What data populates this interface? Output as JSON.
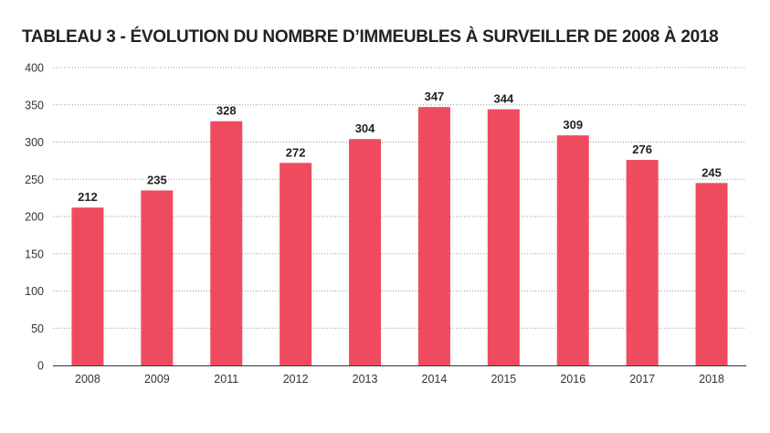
{
  "chart_data": {
    "type": "bar",
    "title": "TABLEAU 3 - ÉVOLUTION DU NOMBRE D’IMMEUBLES À SURVEILLER DE 2008 À 2018",
    "xlabel": "",
    "ylabel": "",
    "categories": [
      "2008",
      "2009",
      "2011",
      "2012",
      "2013",
      "2014",
      "2015",
      "2016",
      "2017",
      "2018"
    ],
    "values": [
      212,
      235,
      328,
      272,
      304,
      347,
      344,
      309,
      276,
      245
    ],
    "data_labels": [
      "212",
      "235",
      "328",
      "272",
      "304",
      "347",
      "344",
      "309",
      "276",
      "245"
    ],
    "ylim": [
      0,
      400
    ],
    "yticks": [
      "0",
      "50",
      "100",
      "150",
      "200",
      "250",
      "300",
      "350",
      "400"
    ],
    "grid": "horizontal dotted",
    "legend": "none",
    "colors": {
      "bar": "#EF4B5F",
      "grid": "#999999",
      "axis": "#333333"
    }
  }
}
